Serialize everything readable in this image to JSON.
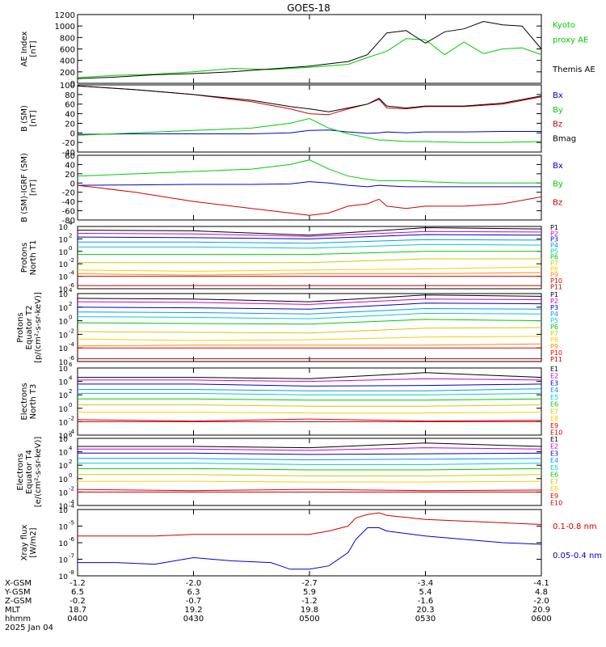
{
  "title": "GOES-18",
  "panels": [
    {
      "id": "ae",
      "ylabel": [
        "AE Index",
        "[nT]"
      ],
      "log": false,
      "ylim": [
        0,
        1200
      ],
      "ticks": [
        "0",
        "200",
        "400",
        "600",
        "800",
        "1000",
        "1200"
      ],
      "tick_values": [
        0,
        200,
        400,
        600,
        800,
        1000,
        1200
      ],
      "legend": [
        {
          "text": "Kyoto",
          "color": "#00cc00"
        },
        {
          "text": "proxy AE",
          "color": "#00cc00"
        },
        {
          "text": "",
          "color": "#000000"
        },
        {
          "text": "Themis AE",
          "color": "#000000"
        }
      ]
    },
    {
      "id": "bsm",
      "ylabel": [
        "B (SM)",
        "[nT]"
      ],
      "log": false,
      "ylim": [
        -40,
        100
      ],
      "ticks": [
        "-40",
        "-20",
        "0",
        "20",
        "40",
        "60",
        "80",
        "100"
      ],
      "tick_values": [
        -40,
        -20,
        0,
        20,
        40,
        60,
        80,
        100
      ],
      "legend": [
        {
          "text": "Bx",
          "color": "#0000cc"
        },
        {
          "text": "By",
          "color": "#00cc00"
        },
        {
          "text": "Bz",
          "color": "#cc0000"
        },
        {
          "text": "Bmag",
          "color": "#000000"
        }
      ]
    },
    {
      "id": "bigrf",
      "ylabel": [
        "B (SM)-IGRF (SM)",
        "[nT]"
      ],
      "log": false,
      "ylim": [
        -80,
        60
      ],
      "ticks": [
        "-80",
        "-60",
        "-40",
        "-20",
        "0",
        "20",
        "40",
        "60"
      ],
      "tick_values": [
        -80,
        -60,
        -40,
        -20,
        0,
        20,
        40,
        60
      ],
      "legend": [
        {
          "text": "Bx",
          "color": "#0000cc"
        },
        {
          "text": "By",
          "color": "#00cc00"
        },
        {
          "text": "Bz",
          "color": "#cc0000"
        }
      ]
    },
    {
      "id": "pT1",
      "ylabel": [
        "Protons",
        "North T1"
      ],
      "log": true,
      "ylim_exp": [
        -6,
        4
      ],
      "tick_exps": [
        -6,
        -4,
        -2,
        0,
        2,
        4
      ],
      "legend_labels": [
        "P1",
        "P2",
        "P3",
        "P4",
        "P5",
        "P6",
        "P7",
        "P8",
        "P9",
        "P10",
        "P11"
      ]
    },
    {
      "id": "pT2",
      "ylabel": [
        "Protons",
        "Equator T2",
        "[p/(cm²-s-sr-keV)]"
      ],
      "log": true,
      "ylim_exp": [
        -6,
        4
      ],
      "tick_exps": [
        -6,
        -4,
        -2,
        0,
        2,
        4
      ],
      "legend_labels": [
        "P1",
        "P2",
        "P3",
        "P4",
        "P5",
        "P6",
        "P7",
        "P8",
        "P9",
        "P10",
        "P11"
      ]
    },
    {
      "id": "eT3",
      "ylabel": [
        "Electrons",
        "North T3"
      ],
      "log": true,
      "ylim_exp": [
        -4,
        6
      ],
      "tick_exps": [
        -4,
        -2,
        0,
        2,
        4,
        6
      ],
      "legend_labels": [
        "E1",
        "E2",
        "E3",
        "E4",
        "E5",
        "E6",
        "E7",
        "E8",
        "E9",
        "E10"
      ]
    },
    {
      "id": "eT4",
      "ylabel": [
        "Electrons",
        "Equator T4",
        "[e/(cm²-s-sr-keV)]"
      ],
      "log": true,
      "ylim_exp": [
        -4,
        6
      ],
      "tick_exps": [
        -4,
        -2,
        0,
        2,
        4,
        6
      ],
      "legend_labels": [
        "E1",
        "E2",
        "E3",
        "E4",
        "E5",
        "E6",
        "E7",
        "E8",
        "E9",
        "E10"
      ]
    },
    {
      "id": "xray",
      "ylabel": [
        "Xray flux",
        "[W/m2]"
      ],
      "log": true,
      "ylim_exp": [
        -8,
        -4
      ],
      "tick_exps": [
        -8,
        -7,
        -6,
        -5,
        -4
      ],
      "legend": [
        {
          "text": "0.1-0.8 nm",
          "color": "#cc0000"
        },
        {
          "text": "0.05-0.4 nm",
          "color": "#0000cc"
        }
      ]
    }
  ],
  "channel_colors": {
    "protons": [
      "#000000",
      "#cc00cc",
      "#0000cc",
      "#0099ff",
      "#00cccc",
      "#00cc00",
      "#cccc00",
      "#ffcc00",
      "#ff8800",
      "#dd0000",
      "#bb0000"
    ],
    "electrons": [
      "#000000",
      "#cc00cc",
      "#0000cc",
      "#0099ff",
      "#00cccc",
      "#00cc00",
      "#cccc00",
      "#ffcc00",
      "#dd0000",
      "#bb0000"
    ]
  },
  "x_axis": {
    "row_labels": [
      "X-GSM",
      "Y-GSM",
      "Z-GSM",
      "MLT",
      "hhmm",
      "2025 Jan 04"
    ],
    "columns": [
      {
        "x": "-1.2",
        "y": "6.5",
        "z": "-0.2",
        "mlt": "18.7",
        "hhmm": "0400"
      },
      {
        "x": "-2.0",
        "y": "6.3",
        "z": "-0.7",
        "mlt": "19.2",
        "hhmm": "0430"
      },
      {
        "x": "-2.7",
        "y": "5.9",
        "z": "-1.2",
        "mlt": "19.8",
        "hhmm": "0500"
      },
      {
        "x": "-3.4",
        "y": "5.4",
        "z": "-1.6",
        "mlt": "20.3",
        "hhmm": "0530"
      },
      {
        "x": "-4.1",
        "y": "4.8",
        "z": "-2.0",
        "mlt": "20.9",
        "hhmm": "0600"
      }
    ]
  },
  "chart_data": [
    {
      "type": "line",
      "title": "GOES-18",
      "ylabel": "AE Index [nT]",
      "x": [
        0,
        10,
        20,
        30,
        40,
        50,
        60,
        70,
        75,
        80,
        85,
        90,
        95,
        100,
        105,
        110,
        115,
        120
      ],
      "series": [
        {
          "name": "Kyoto proxy AE",
          "color": "#00cc00",
          "values": [
            100,
            140,
            160,
            200,
            260,
            240,
            280,
            330,
            450,
            560,
            780,
            760,
            500,
            720,
            520,
            600,
            620,
            500
          ]
        },
        {
          "name": "Themis AE",
          "color": "#000000",
          "values": [
            80,
            110,
            150,
            170,
            200,
            250,
            300,
            380,
            500,
            880,
            920,
            700,
            900,
            950,
            1080,
            1020,
            1000,
            600
          ]
        }
      ],
      "ylim": [
        0,
        1200
      ]
    },
    {
      "type": "line",
      "ylabel": "B (SM) [nT]",
      "x": [
        0,
        15,
        30,
        45,
        55,
        60,
        65,
        70,
        75,
        78,
        80,
        85,
        90,
        100,
        110,
        120
      ],
      "series": [
        {
          "name": "Bx",
          "color": "#0000cc",
          "values": [
            -3,
            -2,
            -2,
            -2,
            0,
            5,
            6,
            2,
            -1,
            0,
            2,
            0,
            2,
            2,
            3,
            3
          ]
        },
        {
          "name": "By",
          "color": "#00cc00",
          "values": [
            -5,
            0,
            5,
            10,
            20,
            30,
            10,
            -2,
            -10,
            -15,
            -15,
            -18,
            -18,
            -20,
            -20,
            -18
          ]
        },
        {
          "name": "Bz",
          "color": "#cc0000",
          "values": [
            98,
            90,
            80,
            65,
            50,
            40,
            38,
            50,
            60,
            70,
            52,
            50,
            55,
            55,
            60,
            75
          ]
        },
        {
          "name": "Bmag",
          "color": "#000000",
          "values": [
            98,
            90,
            80,
            68,
            55,
            50,
            44,
            52,
            60,
            72,
            56,
            52,
            56,
            56,
            62,
            77
          ]
        }
      ],
      "ylim": [
        -40,
        100
      ]
    },
    {
      "type": "line",
      "ylabel": "B (SM)-IGRF (SM) [nT]",
      "x": [
        0,
        15,
        30,
        45,
        55,
        60,
        65,
        70,
        75,
        78,
        80,
        85,
        90,
        100,
        110,
        120
      ],
      "series": [
        {
          "name": "Bx",
          "color": "#0000cc",
          "values": [
            -5,
            -4,
            -3,
            -3,
            -2,
            3,
            0,
            -5,
            -8,
            -5,
            -6,
            -8,
            -8,
            -8,
            -8,
            -8
          ]
        },
        {
          "name": "By",
          "color": "#00cc00",
          "values": [
            15,
            20,
            25,
            30,
            40,
            50,
            30,
            15,
            8,
            5,
            5,
            5,
            3,
            0,
            0,
            0
          ]
        },
        {
          "name": "Bz",
          "color": "#cc0000",
          "values": [
            -5,
            -20,
            -40,
            -55,
            -65,
            -70,
            -65,
            -50,
            -45,
            -35,
            -50,
            -55,
            -50,
            -50,
            -45,
            -30
          ]
        }
      ],
      "ylim": [
        -80,
        60
      ]
    },
    {
      "type": "line",
      "ylabel": "Protons North T1",
      "log_y": true,
      "note": "log10 flux per channel",
      "x": [
        0,
        30,
        60,
        90,
        120
      ],
      "series": [
        {
          "name": "P1",
          "values": [
            3.4,
            3.3,
            2.6,
            3.8,
            3.6
          ]
        },
        {
          "name": "P2",
          "values": [
            2.9,
            2.8,
            2.4,
            3.2,
            3.1
          ]
        },
        {
          "name": "P3",
          "values": [
            2.3,
            2.2,
            2.0,
            2.7,
            2.6
          ]
        },
        {
          "name": "P4",
          "values": [
            1.5,
            1.5,
            1.3,
            1.9,
            1.8
          ]
        },
        {
          "name": "P5",
          "values": [
            0.7,
            0.7,
            0.5,
            1.1,
            1.0
          ]
        },
        {
          "name": "P6",
          "values": [
            -0.5,
            -0.5,
            -0.5,
            0.0,
            0.0
          ]
        },
        {
          "name": "P7",
          "values": [
            -1.8,
            -1.8,
            -1.8,
            -1.2,
            -1.2
          ]
        },
        {
          "name": "P8",
          "values": [
            -3.0,
            -3.2,
            -3.0,
            -2.8,
            -2.5
          ]
        },
        {
          "name": "P9",
          "values": [
            -3.6,
            -3.8,
            -3.6,
            -3.6,
            -3.4
          ]
        },
        {
          "name": "P10",
          "values": [
            -4.0,
            -4.0,
            -4.0,
            -4.0,
            -4.0
          ]
        },
        {
          "name": "P11",
          "values": [
            -5.5,
            -5.5,
            -5.5,
            -5.5,
            -5.5
          ]
        }
      ]
    },
    {
      "type": "line",
      "ylabel": "Protons Equator T2 [p/(cm²-s-sr-keV)]",
      "log_y": true,
      "x": [
        0,
        30,
        60,
        90,
        120
      ],
      "series": [
        {
          "name": "P1",
          "values": [
            3.3,
            3.2,
            2.8,
            3.8,
            3.6
          ]
        },
        {
          "name": "P2",
          "values": [
            2.8,
            2.7,
            2.4,
            3.2,
            3.1
          ]
        },
        {
          "name": "P3",
          "values": [
            2.0,
            1.9,
            1.7,
            2.6,
            2.5
          ]
        },
        {
          "name": "P4",
          "values": [
            1.3,
            1.2,
            1.0,
            1.8,
            1.7
          ]
        },
        {
          "name": "P5",
          "values": [
            0.6,
            0.5,
            0.3,
            1.1,
            1.0
          ]
        },
        {
          "name": "P6",
          "values": [
            -0.3,
            -0.4,
            -0.5,
            0.2,
            0.0
          ]
        },
        {
          "name": "P7",
          "values": [
            -1.6,
            -1.7,
            -1.8,
            -1.1,
            -1.0
          ]
        },
        {
          "name": "P8",
          "values": [
            -2.7,
            -2.9,
            -2.8,
            -2.4,
            -2.3
          ]
        },
        {
          "name": "P9",
          "values": [
            -3.7,
            -3.6,
            -3.6,
            -3.6,
            -3.4
          ]
        },
        {
          "name": "P10",
          "values": [
            -4.0,
            -4.0,
            -4.0,
            -4.0,
            -4.0
          ]
        },
        {
          "name": "P11",
          "values": [
            -5.6,
            -5.6,
            -5.6,
            -5.6,
            -5.6
          ]
        }
      ]
    },
    {
      "type": "line",
      "ylabel": "Electrons North T3",
      "log_y": true,
      "x": [
        0,
        30,
        60,
        90,
        120
      ],
      "series": [
        {
          "name": "E1",
          "values": [
            4.6,
            4.6,
            4.4,
            5.3,
            4.6
          ]
        },
        {
          "name": "E2",
          "values": [
            4.2,
            4.2,
            4.0,
            4.4,
            4.2
          ]
        },
        {
          "name": "E3",
          "values": [
            3.6,
            3.6,
            3.3,
            3.4,
            3.6
          ]
        },
        {
          "name": "E4",
          "values": [
            2.8,
            2.8,
            2.6,
            2.6,
            2.9
          ]
        },
        {
          "name": "E5",
          "values": [
            2.2,
            2.2,
            2.0,
            2.0,
            2.2
          ]
        },
        {
          "name": "E6",
          "values": [
            1.4,
            1.4,
            1.2,
            1.2,
            1.4
          ]
        },
        {
          "name": "E7",
          "values": [
            0.5,
            0.5,
            0.3,
            0.3,
            0.5
          ]
        },
        {
          "name": "E8",
          "values": [
            -0.6,
            -0.6,
            -0.7,
            -0.7,
            -0.6
          ]
        },
        {
          "name": "E9",
          "values": [
            -1.7,
            -1.9,
            -1.6,
            -1.9,
            -1.8
          ]
        },
        {
          "name": "E10",
          "values": [
            -2.0,
            -2.0,
            -2.0,
            -2.0,
            -2.0
          ]
        }
      ]
    },
    {
      "type": "line",
      "ylabel": "Electrons Equator T4 [e/(cm²-s-sr-keV)]",
      "log_y": true,
      "x": [
        0,
        30,
        60,
        90,
        120
      ],
      "series": [
        {
          "name": "E1",
          "values": [
            4.8,
            4.8,
            4.6,
            5.3,
            4.8
          ]
        },
        {
          "name": "E2",
          "values": [
            4.4,
            4.4,
            4.2,
            4.6,
            4.4
          ]
        },
        {
          "name": "E3",
          "values": [
            3.8,
            3.8,
            3.6,
            3.7,
            3.8
          ]
        },
        {
          "name": "E4",
          "values": [
            3.0,
            3.0,
            2.8,
            2.9,
            3.0
          ]
        },
        {
          "name": "E5",
          "values": [
            2.3,
            2.3,
            2.1,
            2.1,
            2.3
          ]
        },
        {
          "name": "E6",
          "values": [
            1.5,
            1.5,
            1.3,
            1.3,
            1.5
          ]
        },
        {
          "name": "E7",
          "values": [
            0.6,
            0.6,
            0.4,
            0.4,
            0.6
          ]
        },
        {
          "name": "E8",
          "values": [
            -0.4,
            -0.4,
            -0.5,
            -0.5,
            -0.4
          ]
        },
        {
          "name": "E9",
          "values": [
            -1.6,
            -1.8,
            -1.6,
            -1.8,
            -1.7
          ]
        },
        {
          "name": "E10",
          "values": [
            -2.0,
            -2.0,
            -2.0,
            -2.0,
            -2.0
          ]
        }
      ]
    },
    {
      "type": "line",
      "ylabel": "Xray flux [W/m2]",
      "log_y": true,
      "x": [
        0,
        10,
        20,
        30,
        40,
        50,
        55,
        60,
        65,
        70,
        72,
        75,
        78,
        80,
        90,
        100,
        110,
        120
      ],
      "series": [
        {
          "name": "0.1-0.8 nm",
          "color": "#cc0000",
          "values": [
            -5.6,
            -5.6,
            -5.6,
            -5.5,
            -5.5,
            -5.5,
            -5.5,
            -5.5,
            -5.3,
            -5.0,
            -4.5,
            -4.3,
            -4.2,
            -4.35,
            -4.6,
            -4.7,
            -4.8,
            -4.9
          ]
        },
        {
          "name": "0.05-0.4 nm",
          "color": "#0000cc",
          "values": [
            -7.2,
            -7.2,
            -7.3,
            -6.9,
            -7.1,
            -7.2,
            -7.6,
            -7.6,
            -7.4,
            -6.6,
            -5.8,
            -5.1,
            -5.1,
            -5.3,
            -5.6,
            -5.8,
            -6.0,
            -6.1
          ]
        }
      ]
    }
  ]
}
